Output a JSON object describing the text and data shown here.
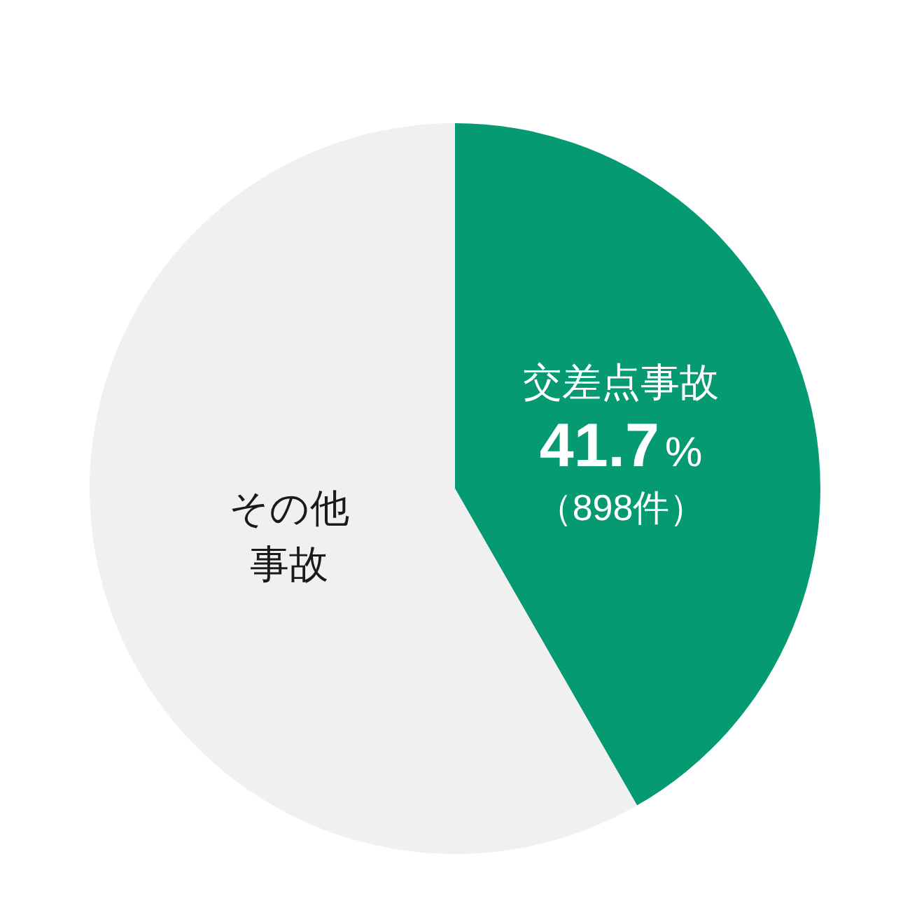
{
  "chart_data": {
    "type": "pie",
    "categories": [
      "交差点事故",
      "その他事故"
    ],
    "values": [
      41.7,
      58.3
    ],
    "colors": [
      "#069a73",
      "#f0f0f0"
    ],
    "value_labels": [
      "41.7%",
      null
    ],
    "annotations": [
      "（898件）"
    ]
  }
}
